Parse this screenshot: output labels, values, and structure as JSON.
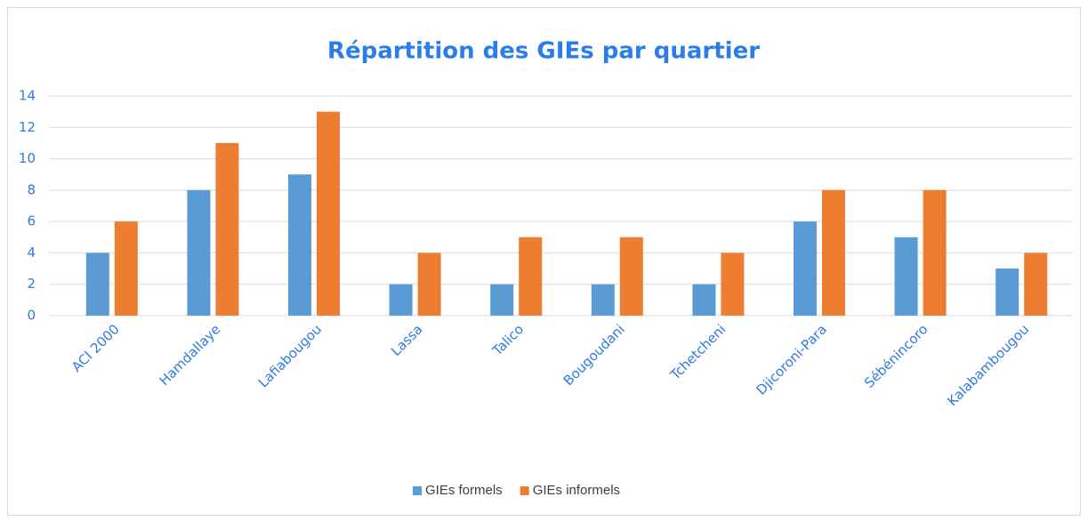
{
  "chart_data": {
    "type": "bar",
    "title": "Répartition des GIEs par quartier",
    "categories": [
      "ACI 2000",
      "Hamdallaye",
      "Lafiabougou",
      "Lassa",
      "Talico",
      "Bougoudani",
      "Tchetcheni",
      "Djicoroni-Para",
      "Sébénincoro",
      "Kalabambougou"
    ],
    "series": [
      {
        "name": "GIEs formels",
        "color": "#5b9bd5",
        "values": [
          4,
          8,
          9,
          2,
          2,
          2,
          2,
          6,
          5,
          3
        ]
      },
      {
        "name": "GIEs informels",
        "color": "#ed7d31",
        "values": [
          6,
          11,
          13,
          4,
          5,
          5,
          4,
          8,
          8,
          4
        ]
      }
    ],
    "ylim": [
      0,
      14
    ],
    "yticks": [
      0,
      2,
      4,
      6,
      8,
      10,
      12,
      14
    ],
    "grid": true,
    "legend": "bottom"
  }
}
